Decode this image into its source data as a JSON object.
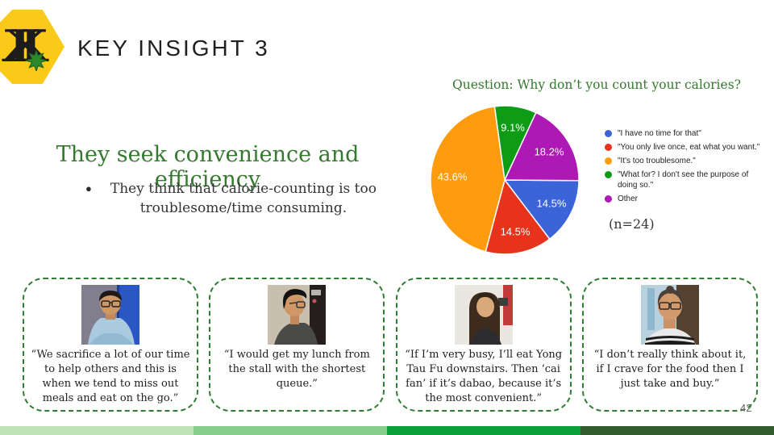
{
  "slide": {
    "title": "KEY INSIGHT 3",
    "page_number": "42"
  },
  "logo": {
    "letters": "KK",
    "colors": {
      "background": "#FBC91A",
      "letters": "#1c1c1c",
      "leaf": "#2C8A2C"
    }
  },
  "insight": {
    "heading": "They seek convenience and efficiency",
    "bullet_marker": "●",
    "bullet": "They think that calorie-counting is too troublesome/time consuming.",
    "heading_color": "#35792E"
  },
  "chart_data": {
    "type": "pie",
    "title": "Question: Why don’t you count your calories?",
    "sample_size_label": "(n=24)",
    "start_angle_deg": 90.5,
    "legend_position": "right",
    "grid": false,
    "series": [
      {
        "name": "\"I have no time for that\"",
        "value": 14.5,
        "label": "14.5%",
        "color": "#3C64D9"
      },
      {
        "name": "\"You only live once, eat what you want.\"",
        "value": 14.5,
        "label": "14.5%",
        "color": "#E7321C"
      },
      {
        "name": "\"It's too troublesome.\"",
        "value": 43.6,
        "label": "43.6%",
        "color": "#FE9B0E"
      },
      {
        "name": "\"What for? I don't see the purpose of doing so.\"",
        "value": 9.1,
        "label": "9.1%",
        "color": "#0E9C17"
      },
      {
        "name": "Other",
        "value": 18.2,
        "label": "18.2%",
        "color": "#AE18B5"
      }
    ]
  },
  "quotes": [
    {
      "photo": "man-glasses-blue-room",
      "text": "“We sacrifice a lot of our time to help others and this is when we tend to miss out meals and eat on the go.”"
    },
    {
      "photo": "man-glasses-profile",
      "text": "“I would get my lunch from the stall with the shortest queue.”"
    },
    {
      "photo": "woman-long-hair",
      "text": "“If I’m very busy, I’ll eat Yong Tau Fu downstairs. Then ‘cai fan’ if it’s dabao, because it’s the most convenient.”"
    },
    {
      "photo": "woman-glasses",
      "text": "“I don’t really think about it, if I crave for the food then I just take and buy.”"
    }
  ],
  "footer_bar": {
    "colors": [
      "#BFE3B7",
      "#87CC8B",
      "#09A138",
      "#325B30"
    ]
  }
}
